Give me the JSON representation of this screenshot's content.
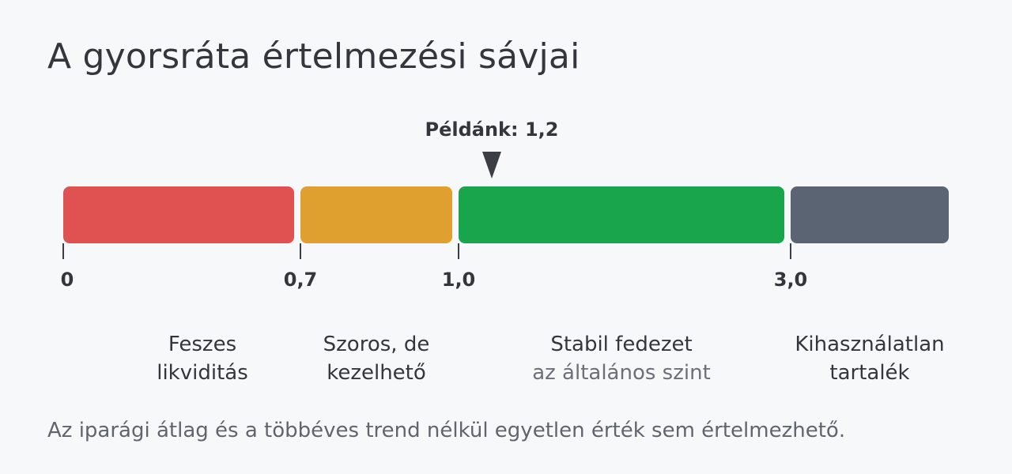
{
  "title": "A gyorsráta értelmezési sávjai",
  "marker": {
    "label": "Példánk: 1,2",
    "value": 1.2
  },
  "scale": {
    "ticks": [
      {
        "value": 0,
        "label": "0"
      },
      {
        "value": 0.7,
        "label": "0,7"
      },
      {
        "value": 1.0,
        "label": "1,0"
      },
      {
        "value": 3.0,
        "label": "3,0"
      }
    ]
  },
  "bands": [
    {
      "from": 0,
      "to": 0.7,
      "color": "#e05252",
      "line1": "Feszes",
      "line2": "likviditás",
      "line2_muted": false
    },
    {
      "from": 0.7,
      "to": 1.0,
      "color": "#e0a030",
      "line1": "Szoros, de",
      "line2": "kezelhető",
      "line2_muted": false
    },
    {
      "from": 1.0,
      "to": 3.0,
      "color": "#18a54c",
      "line1": "Stabil fedezet",
      "line2": "az általános szint",
      "line2_muted": true
    },
    {
      "from": 3.0,
      "to": null,
      "color": "#5a6472",
      "line1": "Kihasználatlan",
      "line2": "tartalék",
      "line2_muted": false
    }
  ],
  "footnote": "Az iparági átlag és a többéves trend nélkül egyetlen érték sem értelmezhető."
}
